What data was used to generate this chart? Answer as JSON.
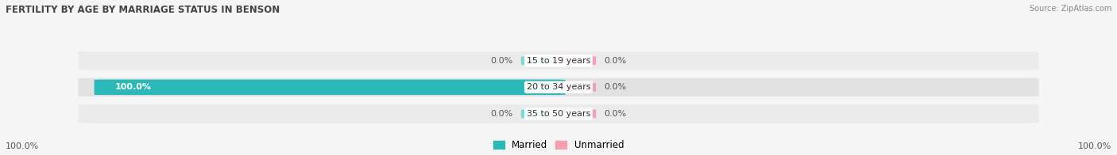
{
  "title": "FERTILITY BY AGE BY MARRIAGE STATUS IN BENSON",
  "source": "Source: ZipAtlas.com",
  "categories": [
    "15 to 19 years",
    "20 to 34 years",
    "35 to 50 years"
  ],
  "married_values": [
    0.0,
    100.0,
    0.0
  ],
  "unmarried_values": [
    0.0,
    0.0,
    0.0
  ],
  "married_color": "#2bb8b8",
  "married_light_color": "#7dd8d8",
  "unmarried_color": "#f4a0b0",
  "row_bg_color_odd": "#ebebeb",
  "row_bg_color_even": "#e0e0e0",
  "bg_color": "#f5f5f5",
  "title_fontsize": 8.5,
  "label_fontsize": 8.0,
  "source_fontsize": 7.0,
  "bottom_left_label": "100.0%",
  "bottom_right_label": "100.0%",
  "figsize": [
    14.06,
    1.96
  ],
  "dpi": 100
}
